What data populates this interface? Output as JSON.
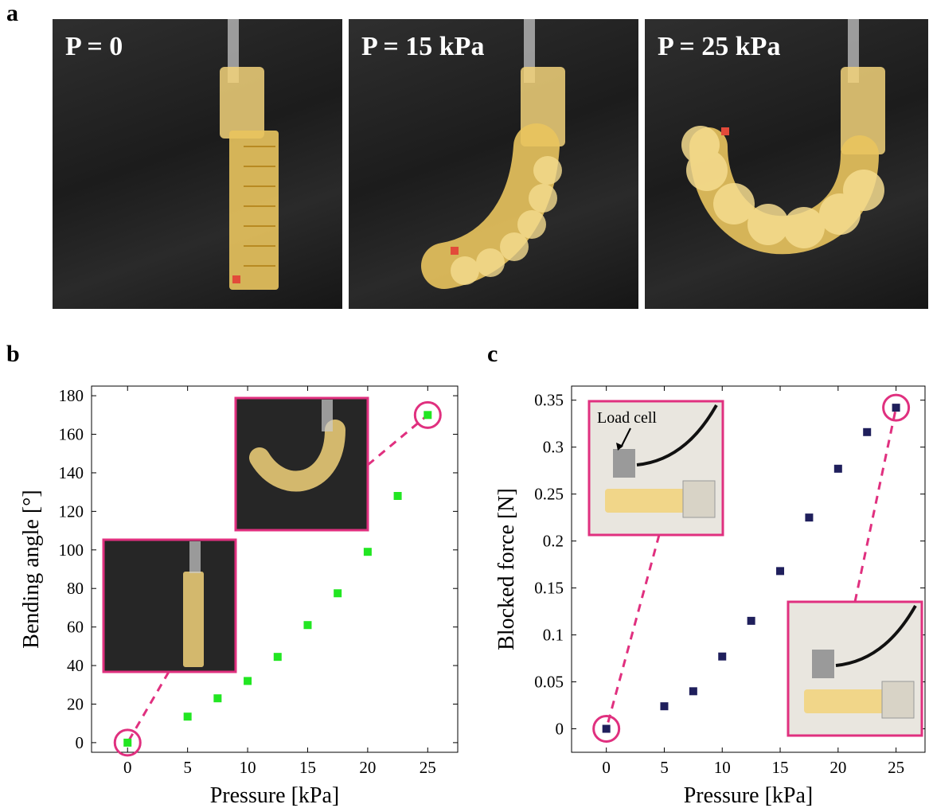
{
  "panels": {
    "a": "a",
    "b": "b",
    "c": "c"
  },
  "photos": [
    {
      "label": "P = 0"
    },
    {
      "label": "P = 15 kPa"
    },
    {
      "label": "P = 25 kPa"
    }
  ],
  "colors": {
    "bending_marker": "#22e622",
    "force_marker": "#1f1f5c",
    "highlight": "#e0307f",
    "actuator": "#f2d27a"
  },
  "chart_data": [
    {
      "type": "scatter",
      "panel": "b",
      "xlabel": "Pressure [kPa]",
      "ylabel": "Bending angle [°]",
      "xlim": [
        -3,
        27.5
      ],
      "ylim": [
        -5,
        185
      ],
      "xticks": [
        0,
        5,
        10,
        15,
        20,
        25
      ],
      "yticks": [
        0,
        20,
        40,
        60,
        80,
        100,
        120,
        140,
        160,
        180
      ],
      "x": [
        0,
        5,
        7.5,
        10,
        12.5,
        15,
        17.5,
        20,
        22.5,
        25
      ],
      "y": [
        0,
        13.5,
        23,
        32,
        44.5,
        61,
        77.5,
        99,
        128,
        170
      ],
      "highlighted_points": [
        0,
        25
      ],
      "grid": false
    },
    {
      "type": "scatter",
      "panel": "c",
      "xlabel": "Pressure [kPa]",
      "ylabel": "Blocked force [N]",
      "xlim": [
        -3,
        27.5
      ],
      "ylim": [
        -0.025,
        0.365
      ],
      "xticks": [
        0,
        5,
        10,
        15,
        20,
        25
      ],
      "yticks": [
        0,
        0.05,
        0.1,
        0.15,
        0.2,
        0.25,
        0.3,
        0.35
      ],
      "x": [
        0,
        5,
        7.5,
        10,
        12.5,
        15,
        17.5,
        20,
        22.5,
        25
      ],
      "y": [
        0,
        0.024,
        0.04,
        0.077,
        0.115,
        0.168,
        0.225,
        0.277,
        0.316,
        0.342
      ],
      "highlighted_points": [
        0,
        25
      ],
      "annotation": "Load cell",
      "grid": false
    }
  ]
}
